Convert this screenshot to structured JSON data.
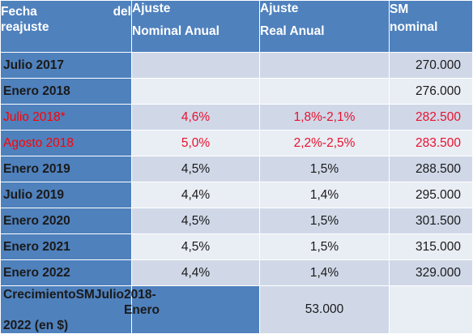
{
  "header": {
    "col1_line1a": "Fecha",
    "col1_line1b": "del",
    "col1_line2": "reajuste",
    "col2_line1": "Ajuste",
    "col2_line2": "Nominal Anual",
    "col3_line1": "Ajuste",
    "col3_line2": "Real Anual",
    "col4_line1": "SM",
    "col4_line2": "nominal"
  },
  "rows": [
    {
      "fecha": "Julio 2017",
      "nominal": "",
      "real": "",
      "sm": "270.000"
    },
    {
      "fecha": "Enero 2018",
      "nominal": "",
      "real": "",
      "sm": "276.000"
    },
    {
      "fecha": "Julio 2018*",
      "nominal": "4,6%",
      "real": "1,8%-2,1%",
      "sm": "282.500"
    },
    {
      "fecha": "Agosto 2018",
      "nominal": "5,0%",
      "real": "2,2%-2,5%",
      "sm": "283.500"
    },
    {
      "fecha": "Enero 2019",
      "nominal": "4,5%",
      "real": "1,5%",
      "sm": "288.500"
    },
    {
      "fecha": "Julio 2019",
      "nominal": "4,4%",
      "real": "1,4%",
      "sm": "295.000"
    },
    {
      "fecha": "Enero 2020",
      "nominal": "4,5%",
      "real": "1,5%",
      "sm": "301.500"
    },
    {
      "fecha": "Enero 2021",
      "nominal": "4,5%",
      "real": "1,5%",
      "sm": "315.000"
    },
    {
      "fecha": "Enero 2022",
      "nominal": "4,4%",
      "real": "1,4%",
      "sm": "329.000"
    }
  ],
  "total": {
    "label_w1": "Crecimiento",
    "label_w2": "SM",
    "label_w3": "Julio",
    "label_w4": "2018-Enero",
    "label_line2": "2022 (en $)",
    "value": "53.000"
  },
  "colors": {
    "header_bg": "#4f81bd",
    "row_dark": "#d0d8e8",
    "row_light": "#e9edf4",
    "highlight_red": "#ff0000"
  }
}
